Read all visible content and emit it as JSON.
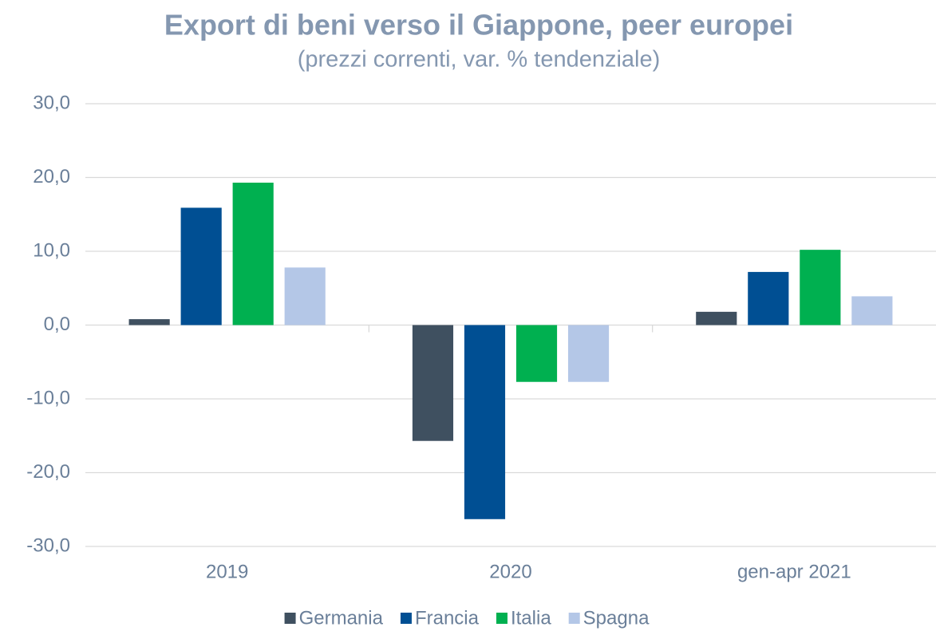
{
  "chart_data": {
    "type": "bar",
    "title": "Export di beni verso il Giappone, peer europei",
    "subtitle": "(prezzi correnti, var. % tendenziale)",
    "categories": [
      "2019",
      "2020",
      "gen-apr 2021"
    ],
    "series": [
      {
        "name": "Germania",
        "color": "#3f5060",
        "values": [
          0.8,
          -15.7,
          1.8
        ]
      },
      {
        "name": "Francia",
        "color": "#004f93",
        "values": [
          15.9,
          -26.3,
          7.2
        ]
      },
      {
        "name": "Italia",
        "color": "#00b050",
        "values": [
          19.3,
          -7.7,
          10.2
        ]
      },
      {
        "name": "Spagna",
        "color": "#b4c7e7",
        "values": [
          7.8,
          -7.7,
          3.9
        ]
      }
    ],
    "ylim": [
      -30,
      30
    ],
    "yticks": [
      {
        "value": -30,
        "label": "-30,0"
      },
      {
        "value": -20,
        "label": "-20,0"
      },
      {
        "value": -10,
        "label": "-10,0"
      },
      {
        "value": 0,
        "label": "0,0"
      },
      {
        "value": 10,
        "label": "10,0"
      },
      {
        "value": 20,
        "label": "20,0"
      },
      {
        "value": 30,
        "label": "30,0"
      }
    ],
    "grid": true,
    "legend": "bottom"
  }
}
